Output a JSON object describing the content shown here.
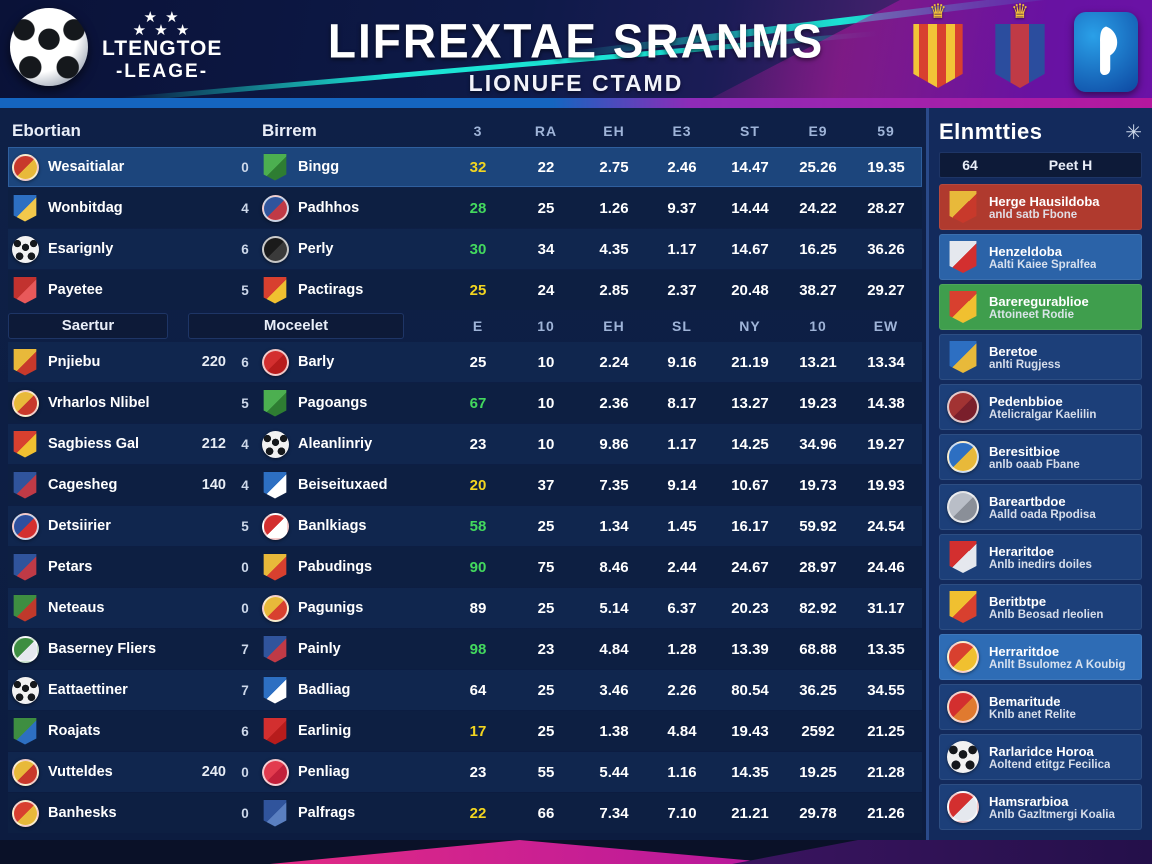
{
  "header": {
    "league_name_line1": "LTENGTOE",
    "league_name_line2": "-LEAGE-",
    "title": "LIFREXTAE SRANMS",
    "subtitle": "LIONUFE CTAMD",
    "accent_teal": "#1be3d4",
    "accent_magenta": "#b5179e"
  },
  "table": {
    "section1": {
      "team_col_headers": [
        "Ebortian",
        "Birrem"
      ],
      "stat_col_headers": [
        "3",
        "RA",
        "EH",
        "E3",
        "ST",
        "E9",
        "59"
      ]
    },
    "section2": {
      "tabs": [
        "Saertur",
        "Moceelet"
      ],
      "stat_col_headers": [
        "E",
        "10",
        "EH",
        "SL",
        "NY",
        "10",
        "EW"
      ]
    },
    "value_colors": {
      "g": "#43d95e",
      "y": "#f2d520",
      "w": "#ffffff"
    },
    "rows": [
      {
        "section": 1,
        "highlight": true,
        "team1": "Wesaitialar",
        "crest1": {
          "shape": "circle",
          "colors": [
            "#c8392b",
            "#e8b93a"
          ]
        },
        "extra": "",
        "num": "0",
        "team2": "Bingg",
        "crest2": {
          "shape": "shield",
          "colors": [
            "#4caf50",
            "#2e7d32"
          ]
        },
        "values": [
          "32",
          "22",
          "2.75",
          "2.46",
          "14.47",
          "25.26",
          "19.35"
        ],
        "value1_color": "y"
      },
      {
        "section": 1,
        "highlight": false,
        "team1": "Wonbitdag",
        "crest1": {
          "shape": "shield",
          "colors": [
            "#2d6fc2",
            "#f2c84b"
          ]
        },
        "extra": "",
        "num": "4",
        "team2": "Padhhos",
        "crest2": {
          "shape": "circle",
          "colors": [
            "#30549c",
            "#c03a46"
          ]
        },
        "values": [
          "28",
          "25",
          "1.26",
          "9.37",
          "14.44",
          "24.22",
          "28.27"
        ],
        "value1_color": "g"
      },
      {
        "section": 1,
        "highlight": false,
        "team1": "Esarignly",
        "crest1": {
          "shape": "ball",
          "colors": []
        },
        "extra": "",
        "num": "6",
        "team2": "Perly",
        "crest2": {
          "shape": "circle",
          "colors": [
            "#1b1b1b",
            "#3a3a3a"
          ]
        },
        "values": [
          "30",
          "34",
          "4.35",
          "1.17",
          "14.67",
          "16.25",
          "36.26"
        ],
        "value1_color": "g"
      },
      {
        "section": 1,
        "highlight": false,
        "team1": "Payetee",
        "crest1": {
          "shape": "shield",
          "colors": [
            "#c2322f",
            "#e8595a"
          ]
        },
        "extra": "",
        "num": "5",
        "team2": "Pactirags",
        "crest2": {
          "shape": "shield",
          "colors": [
            "#d8402f",
            "#f0c030"
          ]
        },
        "values": [
          "25",
          "24",
          "2.85",
          "2.37",
          "20.48",
          "38.27",
          "29.27"
        ],
        "value1_color": "y"
      },
      {
        "section": 2,
        "highlight": false,
        "team1": "Pnjiebu",
        "crest1": {
          "shape": "shield",
          "colors": [
            "#e8b93a",
            "#c8392b"
          ]
        },
        "extra": "220",
        "num": "6",
        "team2": "Barly",
        "crest2": {
          "shape": "circle",
          "colors": [
            "#d32f2f",
            "#b71c1c"
          ]
        },
        "values": [
          "25",
          "10",
          "2.24",
          "9.16",
          "21.19",
          "13.21",
          "13.34"
        ],
        "value1_color": "w"
      },
      {
        "section": 2,
        "highlight": false,
        "team1": "Vrharlos Nlibel",
        "crest1": {
          "shape": "circle",
          "colors": [
            "#e8b93a",
            "#c8392b"
          ]
        },
        "extra": "",
        "num": "5",
        "team2": "Pagoangs",
        "crest2": {
          "shape": "shield",
          "colors": [
            "#4caf50",
            "#2e7d32"
          ]
        },
        "values": [
          "67",
          "10",
          "2.36",
          "8.17",
          "13.27",
          "19.23",
          "14.38"
        ],
        "value1_color": "g"
      },
      {
        "section": 2,
        "highlight": false,
        "team1": "Sagbiess Gal",
        "crest1": {
          "shape": "shield",
          "colors": [
            "#d8402f",
            "#f0c030"
          ]
        },
        "extra": "212",
        "num": "4",
        "team2": "Aleanlinriy",
        "crest2": {
          "shape": "ball",
          "colors": []
        },
        "values": [
          "23",
          "10",
          "9.86",
          "1.17",
          "14.25",
          "34.96",
          "19.27"
        ],
        "value1_color": "w"
      },
      {
        "section": 2,
        "highlight": false,
        "team1": "Cagesheg",
        "crest1": {
          "shape": "shield",
          "colors": [
            "#30549c",
            "#c03a46"
          ]
        },
        "extra": "140",
        "num": "4",
        "team2": "Beiseituxaed",
        "crest2": {
          "shape": "shield",
          "colors": [
            "#2d6fc2",
            "#ffffff"
          ]
        },
        "values": [
          "20",
          "37",
          "7.35",
          "9.14",
          "10.67",
          "19.73",
          "19.93"
        ],
        "value1_color": "y"
      },
      {
        "section": 2,
        "highlight": false,
        "team1": "Detsiirier",
        "crest1": {
          "shape": "circle",
          "colors": [
            "#2d4f9e",
            "#d32f2f"
          ]
        },
        "extra": "",
        "num": "5",
        "team2": "Banlkiags",
        "crest2": {
          "shape": "circle",
          "colors": [
            "#d32f2f",
            "#ffffff"
          ]
        },
        "values": [
          "58",
          "25",
          "1.34",
          "1.45",
          "16.17",
          "59.92",
          "24.54"
        ],
        "value1_color": "g"
      },
      {
        "section": 2,
        "highlight": false,
        "team1": "Petars",
        "crest1": {
          "shape": "shield",
          "colors": [
            "#30549c",
            "#c03a46"
          ]
        },
        "extra": "",
        "num": "0",
        "team2": "Pabudings",
        "crest2": {
          "shape": "shield",
          "colors": [
            "#e8b93a",
            "#d8402f"
          ]
        },
        "values": [
          "90",
          "75",
          "8.46",
          "2.44",
          "24.67",
          "28.97",
          "24.46"
        ],
        "value1_color": "g"
      },
      {
        "section": 2,
        "highlight": false,
        "team1": "Neteaus",
        "crest1": {
          "shape": "shield",
          "colors": [
            "#3e8e41",
            "#c0392b"
          ]
        },
        "extra": "",
        "num": "0",
        "team2": "Pagunigs",
        "crest2": {
          "shape": "circle",
          "colors": [
            "#e8b93a",
            "#d8402f"
          ]
        },
        "values": [
          "89",
          "25",
          "5.14",
          "6.37",
          "20.23",
          "82.92",
          "31.17"
        ],
        "value1_color": "w"
      },
      {
        "section": 2,
        "highlight": false,
        "team1": "Baserney Fliers",
        "crest1": {
          "shape": "circle",
          "colors": [
            "#3e8e41",
            "#e5e8ee"
          ]
        },
        "extra": "",
        "num": "7",
        "team2": "Painly",
        "crest2": {
          "shape": "shield",
          "colors": [
            "#30549c",
            "#c03a46"
          ]
        },
        "values": [
          "98",
          "23",
          "4.84",
          "1.28",
          "13.39",
          "68.88",
          "13.35"
        ],
        "value1_color": "g"
      },
      {
        "section": 2,
        "highlight": false,
        "team1": "Eattaettiner",
        "crest1": {
          "shape": "ball",
          "colors": []
        },
        "extra": "",
        "num": "7",
        "team2": "Badliag",
        "crest2": {
          "shape": "shield",
          "colors": [
            "#2d6fc2",
            "#ffffff"
          ]
        },
        "values": [
          "64",
          "25",
          "3.46",
          "2.26",
          "80.54",
          "36.25",
          "34.55"
        ],
        "value1_color": "w"
      },
      {
        "section": 2,
        "highlight": false,
        "team1": "Roajats",
        "crest1": {
          "shape": "shield",
          "colors": [
            "#3e8e41",
            "#2d6fc2"
          ]
        },
        "extra": "",
        "num": "6",
        "team2": "Earlinig",
        "crest2": {
          "shape": "shield",
          "colors": [
            "#d32f2f",
            "#b71c1c"
          ]
        },
        "values": [
          "17",
          "25",
          "1.38",
          "4.84",
          "19.43",
          "2592",
          "21.25"
        ],
        "value1_color": "y"
      },
      {
        "section": 2,
        "highlight": false,
        "team1": "Vutteldes",
        "crest1": {
          "shape": "circle",
          "colors": [
            "#e8b93a",
            "#c8392b"
          ]
        },
        "extra": "240",
        "num": "0",
        "team2": "Penliag",
        "crest2": {
          "shape": "circle",
          "colors": [
            "#e23b4e",
            "#c2203a"
          ]
        },
        "values": [
          "23",
          "55",
          "5.44",
          "1.16",
          "14.35",
          "19.25",
          "21.28"
        ],
        "value1_color": "w"
      },
      {
        "section": 2,
        "highlight": false,
        "team1": "Banhesks",
        "crest1": {
          "shape": "circle",
          "colors": [
            "#d8402f",
            "#e8b93a"
          ]
        },
        "extra": "",
        "num": "0",
        "team2": "Palfrags",
        "crest2": {
          "shape": "shield",
          "colors": [
            "#30549c",
            "#5a7fc0"
          ]
        },
        "values": [
          "22",
          "66",
          "7.34",
          "7.10",
          "21.21",
          "29.78",
          "21.26"
        ],
        "value1_color": "y"
      }
    ]
  },
  "sidebar": {
    "title": "Elnmtties",
    "star_icon": "✳",
    "meta_left": "64",
    "meta_right": "Peet H",
    "cards": [
      {
        "title": "Herge Hausildoba",
        "subtitle": "anld satb Fbone",
        "bg": "#b03a2e",
        "crest": {
          "shape": "shield",
          "colors": [
            "#e8b93a",
            "#c8392b"
          ]
        },
        "highlight": false
      },
      {
        "title": "Henzeldoba",
        "subtitle": "Aalti Kaiee Spralfea",
        "bg": "#2b63a8",
        "crest": {
          "shape": "shield",
          "colors": [
            "#e5e8ee",
            "#d32f2f"
          ]
        },
        "highlight": false
      },
      {
        "title": "Bareregurablioe",
        "subtitle": "Attoineet Rodie",
        "bg": "#3f9e4d",
        "crest": {
          "shape": "shield",
          "colors": [
            "#d8402f",
            "#f0c030"
          ]
        },
        "highlight": false
      },
      {
        "title": "Beretoe",
        "subtitle": "anlti Rugjess",
        "bg": "#1c3f79",
        "crest": {
          "shape": "shield",
          "colors": [
            "#2d6fc2",
            "#e8b93a"
          ]
        },
        "highlight": false
      },
      {
        "title": "Pedenbbioe",
        "subtitle": "Atelicralgar Kaelilin",
        "bg": "#1c3f79",
        "crest": {
          "shape": "circle",
          "colors": [
            "#a23333",
            "#7a1f2b"
          ]
        },
        "highlight": false
      },
      {
        "title": "Beresitbioe",
        "subtitle": "anlb oaab Fbane",
        "bg": "#1c3f79",
        "crest": {
          "shape": "circle",
          "colors": [
            "#2d6fc2",
            "#e8b93a"
          ]
        },
        "highlight": false
      },
      {
        "title": "Bareartbdoe",
        "subtitle": "Aalld oada Rpodisa",
        "bg": "#1c3f79",
        "crest": {
          "shape": "circle",
          "colors": [
            "#b9bec7",
            "#8a8f98"
          ]
        },
        "highlight": false
      },
      {
        "title": "Heraritdoe",
        "subtitle": "Anlb inedirs doiles",
        "bg": "#1c3f79",
        "crest": {
          "shape": "shield",
          "colors": [
            "#d32f2f",
            "#e5e8ee"
          ]
        },
        "highlight": false
      },
      {
        "title": "Beritbtpe",
        "subtitle": "Anlb Beosad rleolien",
        "bg": "#1c3f79",
        "crest": {
          "shape": "shield",
          "colors": [
            "#f0c030",
            "#d8402f"
          ]
        },
        "highlight": false
      },
      {
        "title": "Herraritdoe",
        "subtitle": "Anllt Bsulomez A Koubig",
        "bg": "#2e6cb5",
        "crest": {
          "shape": "circle",
          "colors": [
            "#d8402f",
            "#f0c030"
          ]
        },
        "highlight": true
      },
      {
        "title": "Bemaritude",
        "subtitle": "Knlb anet Relite",
        "bg": "#1c3f79",
        "crest": {
          "shape": "circle",
          "colors": [
            "#d32f2f",
            "#e07a2f"
          ]
        },
        "highlight": false
      },
      {
        "title": "Rarlaridce Horoa",
        "subtitle": "Aoltend etitgz Fecilica",
        "bg": "#1c3f79",
        "crest": {
          "shape": "ball",
          "colors": []
        },
        "highlight": false
      },
      {
        "title": "Hamsrarbioa",
        "subtitle": "Anlb Gazltmergi Koalia",
        "bg": "#1c3f79",
        "crest": {
          "shape": "circle",
          "colors": [
            "#d32f2f",
            "#e5e8ee"
          ]
        },
        "highlight": false
      }
    ]
  }
}
